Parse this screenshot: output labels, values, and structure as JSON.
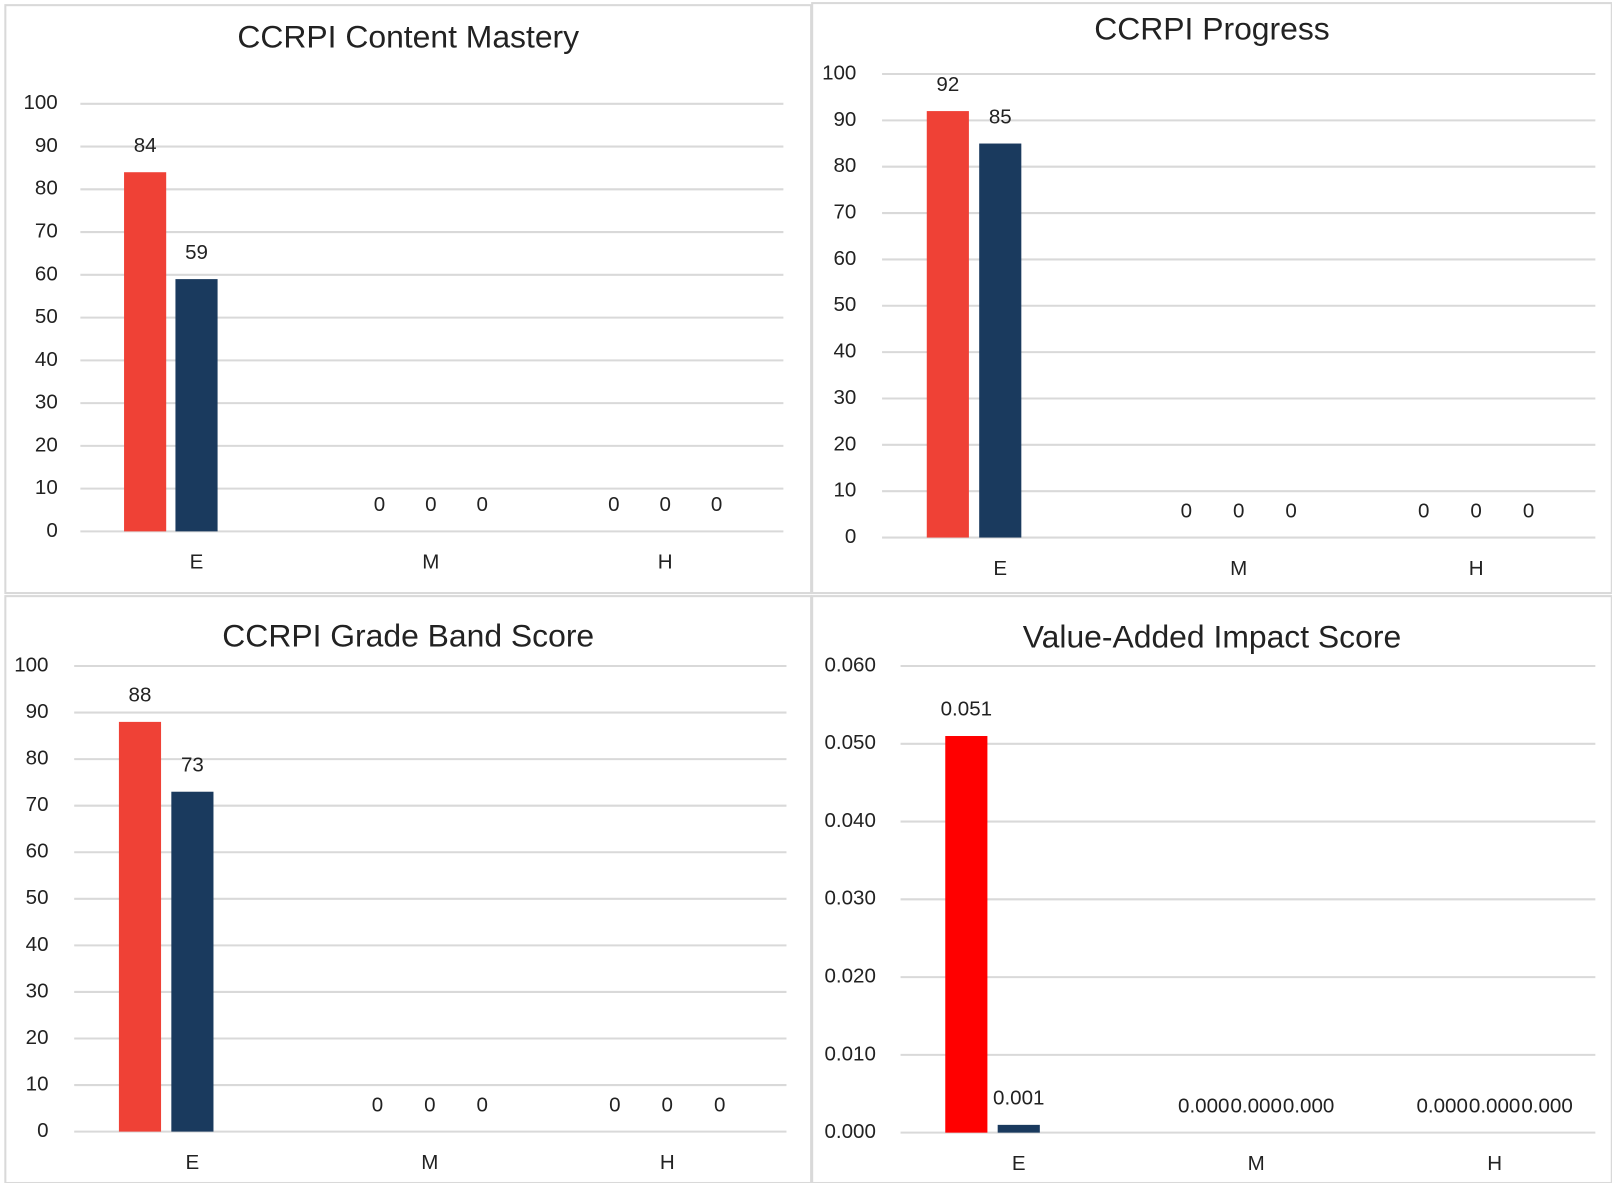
{
  "chart_data": [
    {
      "type": "bar",
      "title": "CCRPI Content Mastery",
      "categories": [
        "E",
        "M",
        "H"
      ],
      "series": [
        {
          "color": "#ef4136",
          "values": [
            84,
            0,
            0
          ]
        },
        {
          "color": "#1a3a5e",
          "values": [
            59,
            0,
            0
          ]
        },
        {
          "color": "#7f7f7f",
          "values": [
            null,
            0,
            0
          ]
        }
      ],
      "ylim": [
        0,
        100
      ],
      "yticks": [
        0,
        10,
        20,
        30,
        40,
        50,
        60,
        70,
        80,
        90,
        100
      ],
      "grid": true
    },
    {
      "type": "bar",
      "title": "CCRPI Progress",
      "categories": [
        "E",
        "M",
        "H"
      ],
      "series": [
        {
          "color": "#ef4136",
          "values": [
            92,
            0,
            0
          ]
        },
        {
          "color": "#1a3a5e",
          "values": [
            85,
            0,
            0
          ]
        },
        {
          "color": "#7f7f7f",
          "values": [
            null,
            0,
            0
          ]
        }
      ],
      "ylim": [
        0,
        100
      ],
      "yticks": [
        0,
        10,
        20,
        30,
        40,
        50,
        60,
        70,
        80,
        90,
        100
      ],
      "grid": true
    },
    {
      "type": "bar",
      "title": "CCRPI Grade Band Score",
      "categories": [
        "E",
        "M",
        "H"
      ],
      "series": [
        {
          "color": "#ef4136",
          "values": [
            88,
            0,
            0
          ]
        },
        {
          "color": "#1a3a5e",
          "values": [
            73,
            0,
            0
          ]
        },
        {
          "color": "#7f7f7f",
          "values": [
            null,
            0,
            0
          ]
        }
      ],
      "ylim": [
        0,
        100
      ],
      "yticks": [
        0,
        10,
        20,
        30,
        40,
        50,
        60,
        70,
        80,
        90,
        100
      ],
      "grid": true
    },
    {
      "type": "bar",
      "title": "Value-Added Impact Score",
      "categories": [
        "E",
        "M",
        "H"
      ],
      "series": [
        {
          "color": "#ff0000",
          "values": [
            0.051,
            0,
            0
          ],
          "value_labels": [
            "0.051",
            "0.000",
            "0.000"
          ]
        },
        {
          "color": "#1a3a5e",
          "values": [
            0.001,
            0,
            0
          ],
          "value_labels": [
            "0.001",
            "0.000",
            "0.000"
          ]
        },
        {
          "color": "#7f7f7f",
          "values": [
            null,
            0,
            0
          ],
          "value_labels": [
            null,
            "0.000",
            "0.000"
          ]
        }
      ],
      "ylim": [
        0,
        0.06
      ],
      "yticks": [
        {
          "value": 0,
          "label": "0.000"
        },
        {
          "value": 0.01,
          "label": "0.010"
        },
        {
          "value": 0.02,
          "label": "0.020"
        },
        {
          "value": 0.03,
          "label": "0.030"
        },
        {
          "value": 0.04,
          "label": "0.040"
        },
        {
          "value": 0.05,
          "label": "0.050"
        },
        {
          "value": 0.06,
          "label": "0.060"
        }
      ],
      "grid": true
    }
  ]
}
